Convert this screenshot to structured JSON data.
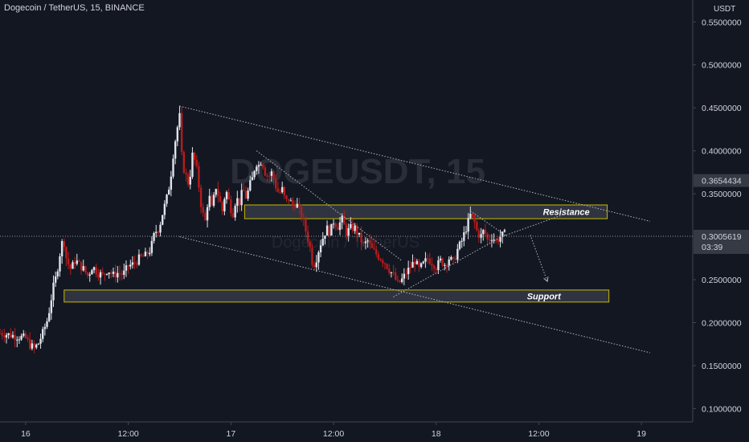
{
  "header": {
    "symbol_line": "Dogecoin / TetherUS, 15, BINANCE",
    "currency": "USDT"
  },
  "watermark": {
    "symbol": "DOGEUSDT, 15",
    "name": "Dogecoin / TetherUS"
  },
  "price_tags": {
    "upper": {
      "value": "0.3654434",
      "color": "#363a45"
    },
    "current": {
      "value": "0.3005619",
      "countdown": "03:39",
      "color": "#363a45"
    }
  },
  "colors": {
    "up": "#e0e3eb",
    "down": "#b71c1c",
    "zone_border": "#c9b800",
    "zone_fill": "#363a45",
    "trend": "#b2b5be"
  },
  "chart_data": {
    "type": "candlestick",
    "title": "Dogecoin / TetherUS, 15, BINANCE",
    "ylabel": "USDT",
    "ylim": [
      0.0845,
      0.5755
    ],
    "y_ticks": [
      {
        "value": 0.55,
        "label": "0.5500000"
      },
      {
        "value": 0.5,
        "label": "0.5000000"
      },
      {
        "value": 0.45,
        "label": "0.4500000"
      },
      {
        "value": 0.4,
        "label": "0.4000000"
      },
      {
        "value": 0.35,
        "label": "0.3500000"
      },
      {
        "value": 0.25,
        "label": "0.2500000"
      },
      {
        "value": 0.2,
        "label": "0.2000000"
      },
      {
        "value": 0.15,
        "label": "0.1500000"
      },
      {
        "value": 0.1,
        "label": "0.1000000"
      }
    ],
    "x_ticks": [
      {
        "t": 0,
        "label": "16"
      },
      {
        "t": 12,
        "label": "12:00"
      },
      {
        "t": 24,
        "label": "17"
      },
      {
        "t": 36,
        "label": "12:00"
      },
      {
        "t": 48,
        "label": "18"
      },
      {
        "t": 60,
        "label": "12:00"
      },
      {
        "t": 72,
        "label": "19"
      }
    ],
    "x_unit": "hours from Jan 16 00:00",
    "xlim": [
      -3,
      78
    ],
    "price_path": [
      [
        -3,
        0.188
      ],
      [
        -1,
        0.184
      ],
      [
        0,
        0.182
      ],
      [
        0.5,
        0.174
      ],
      [
        1,
        0.17
      ],
      [
        1.5,
        0.176
      ],
      [
        2,
        0.188
      ],
      [
        2.6,
        0.205
      ],
      [
        3.2,
        0.24
      ],
      [
        3.6,
        0.255
      ],
      [
        4,
        0.28
      ],
      [
        4.4,
        0.3
      ],
      [
        4.8,
        0.272
      ],
      [
        5.3,
        0.262
      ],
      [
        5.8,
        0.273
      ],
      [
        6.4,
        0.266
      ],
      [
        6.8,
        0.262
      ],
      [
        7.3,
        0.254
      ],
      [
        7.8,
        0.266
      ],
      [
        8.4,
        0.258
      ],
      [
        9,
        0.255
      ],
      [
        9.6,
        0.262
      ],
      [
        10.2,
        0.255
      ],
      [
        10.8,
        0.258
      ],
      [
        11.4,
        0.256
      ],
      [
        12,
        0.266
      ],
      [
        12.6,
        0.268
      ],
      [
        13.3,
        0.275
      ],
      [
        14,
        0.278
      ],
      [
        14.6,
        0.285
      ],
      [
        15.1,
        0.305
      ],
      [
        15.6,
        0.31
      ],
      [
        16,
        0.327
      ],
      [
        16.5,
        0.345
      ],
      [
        16.9,
        0.365
      ],
      [
        17.3,
        0.4
      ],
      [
        17.7,
        0.425
      ],
      [
        18,
        0.44
      ],
      [
        18.3,
        0.385
      ],
      [
        18.7,
        0.372
      ],
      [
        19.1,
        0.36
      ],
      [
        19.5,
        0.395
      ],
      [
        19.9,
        0.385
      ],
      [
        20.3,
        0.355
      ],
      [
        20.6,
        0.33
      ],
      [
        21,
        0.318
      ],
      [
        21.4,
        0.35
      ],
      [
        21.8,
        0.33
      ],
      [
        22.2,
        0.36
      ],
      [
        22.6,
        0.345
      ],
      [
        23,
        0.33
      ],
      [
        23.4,
        0.355
      ],
      [
        23.8,
        0.34
      ],
      [
        24.2,
        0.325
      ],
      [
        24.6,
        0.345
      ],
      [
        25,
        0.34
      ],
      [
        25.4,
        0.355
      ],
      [
        25.8,
        0.345
      ],
      [
        26.2,
        0.36
      ],
      [
        26.6,
        0.37
      ],
      [
        26.9,
        0.388
      ],
      [
        27.2,
        0.382
      ],
      [
        27.6,
        0.39
      ],
      [
        28,
        0.375
      ],
      [
        28.4,
        0.37
      ],
      [
        28.8,
        0.375
      ],
      [
        29.2,
        0.36
      ],
      [
        29.6,
        0.35
      ],
      [
        30,
        0.355
      ],
      [
        30.4,
        0.34
      ],
      [
        30.8,
        0.345
      ],
      [
        31.2,
        0.335
      ],
      [
        31.6,
        0.34
      ],
      [
        32,
        0.33
      ],
      [
        32.4,
        0.32
      ],
      [
        32.8,
        0.305
      ],
      [
        33.2,
        0.29
      ],
      [
        33.6,
        0.265
      ],
      [
        34,
        0.275
      ],
      [
        34.4,
        0.29
      ],
      [
        34.8,
        0.3
      ],
      [
        35.2,
        0.31
      ],
      [
        35.6,
        0.305
      ],
      [
        36,
        0.318
      ],
      [
        36.5,
        0.312
      ],
      [
        37,
        0.32
      ],
      [
        37.5,
        0.305
      ],
      [
        38,
        0.31
      ],
      [
        38.5,
        0.31
      ],
      [
        39,
        0.3
      ],
      [
        39.5,
        0.29
      ],
      [
        40,
        0.295
      ],
      [
        40.5,
        0.285
      ],
      [
        41,
        0.28
      ],
      [
        41.5,
        0.275
      ],
      [
        42,
        0.27
      ],
      [
        42.5,
        0.262
      ],
      [
        43,
        0.255
      ],
      [
        43.5,
        0.245
      ],
      [
        44,
        0.25
      ],
      [
        44.5,
        0.258
      ],
      [
        45,
        0.265
      ],
      [
        45.5,
        0.272
      ],
      [
        46,
        0.262
      ],
      [
        46.5,
        0.268
      ],
      [
        47,
        0.275
      ],
      [
        47.5,
        0.27
      ],
      [
        48,
        0.265
      ],
      [
        48.5,
        0.272
      ],
      [
        49,
        0.268
      ],
      [
        49.5,
        0.275
      ],
      [
        50,
        0.27
      ],
      [
        50.5,
        0.285
      ],
      [
        51,
        0.295
      ],
      [
        51.5,
        0.31
      ],
      [
        52,
        0.325
      ],
      [
        52.4,
        0.32
      ],
      [
        52.8,
        0.305
      ],
      [
        53.2,
        0.3
      ],
      [
        53.6,
        0.308
      ],
      [
        54,
        0.296
      ],
      [
        54.5,
        0.3
      ],
      [
        55,
        0.295
      ],
      [
        55.5,
        0.3
      ],
      [
        56,
        0.303
      ]
    ],
    "annotations": [
      {
        "type": "zone",
        "label": "Resistance",
        "y_top": 0.337,
        "y_bottom": 0.321,
        "x_from": 25.6,
        "x_to": 68.0
      },
      {
        "type": "zone",
        "label": "Support",
        "y_top": 0.238,
        "y_bottom": 0.224,
        "x_from": 4.5,
        "x_to": 68.2
      },
      {
        "type": "line",
        "name": "upper channel",
        "from": [
          18,
          0.452
        ],
        "to": [
          73,
          0.318
        ]
      },
      {
        "type": "line",
        "name": "lower channel",
        "from": [
          18,
          0.3
        ],
        "to": [
          73,
          0.165
        ]
      },
      {
        "type": "line",
        "name": "inner descending",
        "from": [
          27,
          0.4
        ],
        "to": [
          44,
          0.272
        ]
      },
      {
        "type": "line",
        "name": "triangle top",
        "from": [
          52,
          0.33
        ],
        "to": [
          56.2,
          0.301
        ]
      },
      {
        "type": "line",
        "name": "triangle base",
        "from": [
          43,
          0.23
        ],
        "to": [
          56.2,
          0.303
        ]
      },
      {
        "type": "line",
        "name": "projection up",
        "from": [
          56.2,
          0.302
        ],
        "to": [
          63.5,
          0.328
        ]
      },
      {
        "type": "arrow",
        "name": "projection down",
        "from": [
          59,
          0.302
        ],
        "to": [
          61,
          0.248
        ]
      }
    ],
    "current_price": 0.3005619,
    "marked_price": 0.3654434,
    "grid": false,
    "legend": "none"
  }
}
